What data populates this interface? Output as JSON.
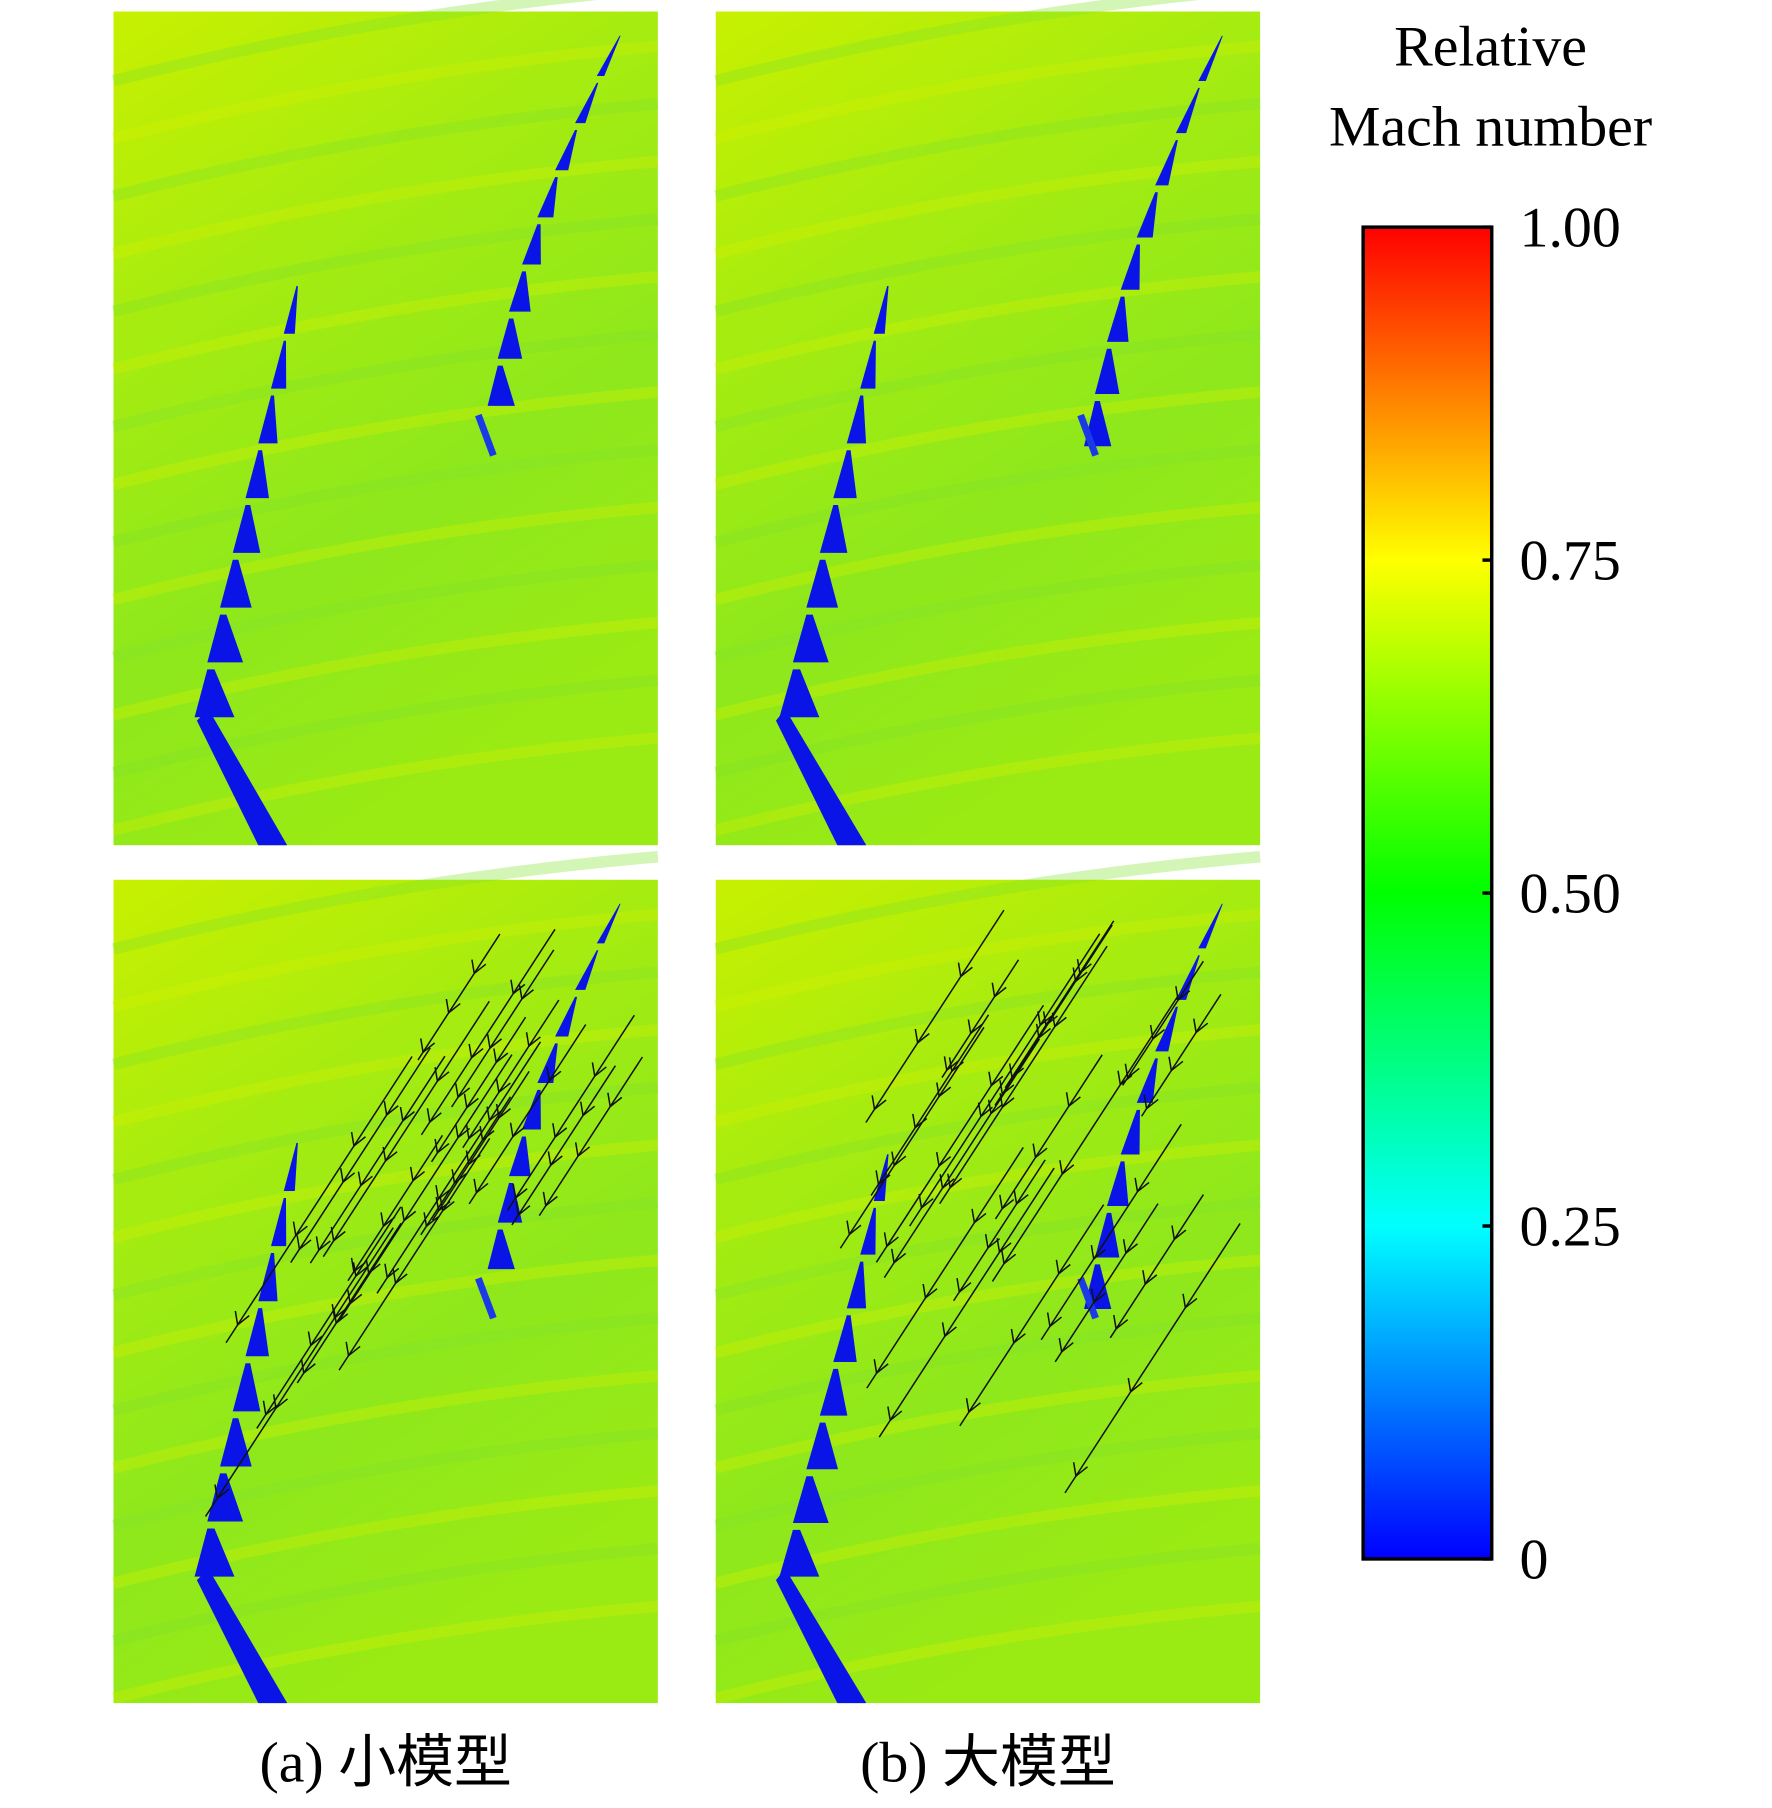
{
  "chart_data": {
    "type": "contour",
    "colorbar_label": [
      "Relative",
      "Mach number"
    ],
    "zlim": [
      0,
      1
    ],
    "zticks": [
      {
        "value": 1,
        "label": "1.00"
      },
      0.75,
      {
        "value": 0.5,
        "label": "0.50"
      },
      0.25,
      0
    ],
    "colormap": [
      "#0000ff",
      "#00ffff",
      "#00ff00",
      "#ffff00",
      "#ff0000"
    ],
    "panels": [
      {
        "caption": "(a) 小模型"
      },
      {
        "caption": "(b) 大模型"
      }
    ]
  }
}
